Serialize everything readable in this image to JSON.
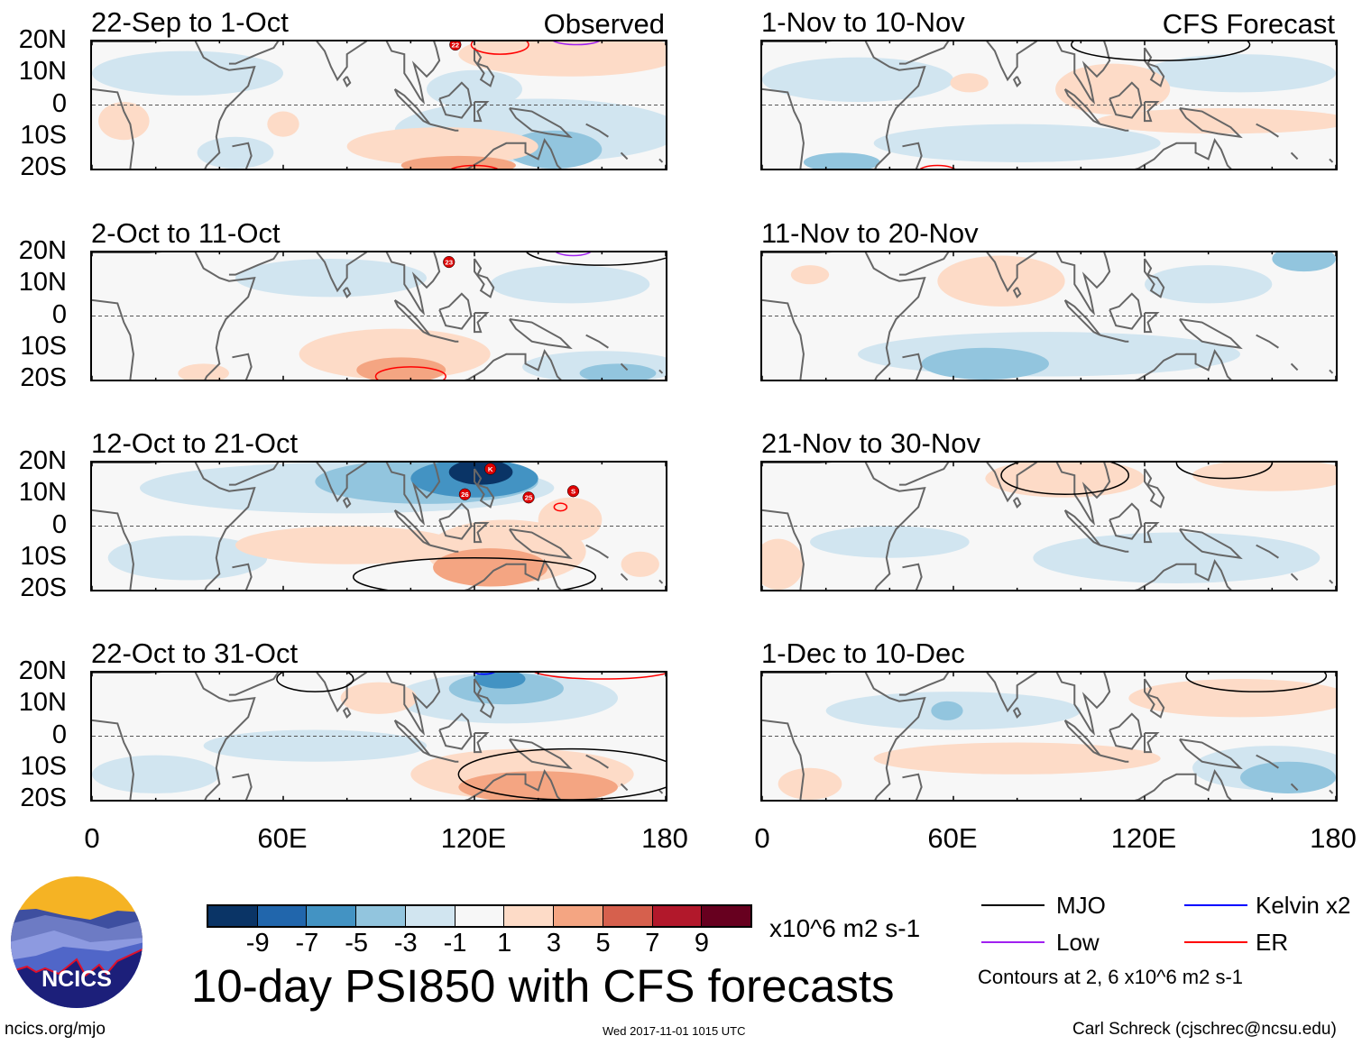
{
  "title": "10-day PSI850 with CFS forecasts",
  "units": "x10^6 m2 s-1",
  "timestamp": "Wed 2017-11-01 1015 UTC",
  "site": "ncics.org/mjo",
  "author": "Carl Schreck (cjschrec@ncsu.edu)",
  "logo_text": "NCICS",
  "lat_labels": [
    "20N",
    "10N",
    "0",
    "10S",
    "20S"
  ],
  "lon_labels": [
    "0",
    "60E",
    "120E",
    "180"
  ],
  "colorbar": {
    "levels": [
      "-9",
      "-7",
      "-5",
      "-3",
      "-1",
      "1",
      "3",
      "5",
      "7",
      "9"
    ],
    "colors": [
      "#0a3466",
      "#2166ac",
      "#4393c3",
      "#92c5de",
      "#d1e5f0",
      "#f7f7f7",
      "#fddbc7",
      "#f4a582",
      "#d6604d",
      "#b2182b",
      "#67001f"
    ]
  },
  "legend": {
    "items": [
      {
        "label": "MJO",
        "color": "#000000"
      },
      {
        "label": "Kelvin x2",
        "color": "#0000ff"
      },
      {
        "label": "Low",
        "color": "#a020f0"
      },
      {
        "label": "ER",
        "color": "#ff0000"
      }
    ],
    "note": "Contours at 2, 6 x10^6 m2 s-1"
  },
  "chart_data": {
    "type": "heatmap",
    "variable": "PSI850 anomaly",
    "lon_range": [
      0,
      180
    ],
    "lat_range": [
      -20,
      20
    ],
    "panels": [
      {
        "title": "22-Sep to 1-Oct",
        "label": "Observed",
        "anomalies": [
          {
            "lon": 30,
            "lat": 10,
            "rx": 30,
            "ry": 7,
            "value": -2
          },
          {
            "lon": 45,
            "lat": -15,
            "rx": 12,
            "ry": 5,
            "value": -2
          },
          {
            "lon": 140,
            "lat": -8,
            "rx": 45,
            "ry": 10,
            "value": -2
          },
          {
            "lon": 120,
            "lat": 5,
            "rx": 15,
            "ry": 6,
            "value": -2
          },
          {
            "lon": 145,
            "lat": -14,
            "rx": 15,
            "ry": 6,
            "value": -4
          },
          {
            "lon": 110,
            "lat": -13,
            "rx": 30,
            "ry": 6,
            "value": 2
          },
          {
            "lon": 115,
            "lat": -19,
            "rx": 18,
            "ry": 3,
            "value": 4
          },
          {
            "lon": 150,
            "lat": 16,
            "rx": 35,
            "ry": 7,
            "value": 2
          },
          {
            "lon": 60,
            "lat": -6,
            "rx": 5,
            "ry": 4,
            "value": 2
          },
          {
            "lon": 10,
            "lat": -5,
            "rx": 8,
            "ry": 6,
            "value": 2
          }
        ],
        "contours": [
          {
            "type": "ER",
            "lon": 128,
            "lat": 19,
            "rx": 9,
            "ry": 3
          },
          {
            "type": "ER",
            "lon": 120,
            "lat": -21,
            "rx": 8,
            "ry": 2
          },
          {
            "type": "Low",
            "lon": 152,
            "lat": 21,
            "rx": 8,
            "ry": 2
          }
        ],
        "storms": [
          {
            "label": "22",
            "lon": 114,
            "lat": 19
          }
        ]
      },
      {
        "title": "2-Oct to 11-Oct",
        "label": "",
        "anomalies": [
          {
            "lon": 75,
            "lat": 12,
            "rx": 30,
            "ry": 6,
            "value": -2
          },
          {
            "lon": 150,
            "lat": 10,
            "rx": 25,
            "ry": 6,
            "value": -2
          },
          {
            "lon": 160,
            "lat": -16,
            "rx": 25,
            "ry": 5,
            "value": -2
          },
          {
            "lon": 95,
            "lat": -12,
            "rx": 30,
            "ry": 8,
            "value": 2
          },
          {
            "lon": 97,
            "lat": -17,
            "rx": 14,
            "ry": 4,
            "value": 4
          },
          {
            "lon": 165,
            "lat": -18,
            "rx": 12,
            "ry": 3,
            "value": -4
          },
          {
            "lon": 35,
            "lat": -18,
            "rx": 8,
            "ry": 3,
            "value": 2
          }
        ],
        "contours": [
          {
            "type": "ER",
            "lon": 100,
            "lat": -19,
            "rx": 11,
            "ry": 3
          },
          {
            "type": "MJO",
            "lon": 160,
            "lat": 21,
            "rx": 24,
            "ry": 5
          },
          {
            "type": "Low",
            "lon": 151,
            "lat": 21,
            "rx": 6,
            "ry": 2
          }
        ],
        "storms": [
          {
            "label": "23",
            "lon": 112,
            "lat": 17
          }
        ]
      },
      {
        "title": "12-Oct to 21-Oct",
        "label": "",
        "anomalies": [
          {
            "lon": 80,
            "lat": 12,
            "rx": 65,
            "ry": 8,
            "value": -2
          },
          {
            "lon": 30,
            "lat": -10,
            "rx": 25,
            "ry": 7,
            "value": -2
          },
          {
            "lon": 105,
            "lat": 14,
            "rx": 35,
            "ry": 7,
            "value": -4
          },
          {
            "lon": 120,
            "lat": 15,
            "rx": 20,
            "ry": 6,
            "value": -6
          },
          {
            "lon": 122,
            "lat": 17,
            "rx": 10,
            "ry": 4,
            "value": -10
          },
          {
            "lon": 80,
            "lat": -6,
            "rx": 35,
            "ry": 6,
            "value": 2
          },
          {
            "lon": 130,
            "lat": -8,
            "rx": 25,
            "ry": 10,
            "value": 2
          },
          {
            "lon": 125,
            "lat": -13,
            "rx": 18,
            "ry": 6,
            "value": 4
          },
          {
            "lon": 150,
            "lat": 2,
            "rx": 10,
            "ry": 7,
            "value": 2
          },
          {
            "lon": 172,
            "lat": -12,
            "rx": 6,
            "ry": 4,
            "value": 2
          }
        ],
        "contours": [
          {
            "type": "MJO",
            "lon": 120,
            "lat": -16,
            "rx": 38,
            "ry": 6
          },
          {
            "type": "ER",
            "lon": 147,
            "lat": 6,
            "rx": 2,
            "ry": 1.2
          }
        ],
        "storms": [
          {
            "label": "26",
            "lon": 117,
            "lat": 10
          },
          {
            "label": "K",
            "lon": 125,
            "lat": 18
          },
          {
            "label": "25",
            "lon": 137,
            "lat": 9
          },
          {
            "label": "S",
            "lon": 151,
            "lat": 11
          }
        ]
      },
      {
        "title": "22-Oct to 31-Oct",
        "label": "",
        "anomalies": [
          {
            "lon": 70,
            "lat": -3,
            "rx": 35,
            "ry": 5,
            "value": -2
          },
          {
            "lon": 20,
            "lat": -12,
            "rx": 20,
            "ry": 6,
            "value": -2
          },
          {
            "lon": 130,
            "lat": 12,
            "rx": 35,
            "ry": 8,
            "value": -2
          },
          {
            "lon": 130,
            "lat": 15,
            "rx": 18,
            "ry": 5,
            "value": -4
          },
          {
            "lon": 128,
            "lat": 18,
            "rx": 8,
            "ry": 3,
            "value": -6
          },
          {
            "lon": 135,
            "lat": -12,
            "rx": 35,
            "ry": 8,
            "value": 2
          },
          {
            "lon": 140,
            "lat": -16,
            "rx": 25,
            "ry": 5,
            "value": 4
          },
          {
            "lon": 90,
            "lat": 12,
            "rx": 12,
            "ry": 5,
            "value": 2
          }
        ],
        "contours": [
          {
            "type": "MJO",
            "lon": 70,
            "lat": 18,
            "rx": 12,
            "ry": 4
          },
          {
            "type": "MJO",
            "lon": 150,
            "lat": -12,
            "rx": 35,
            "ry": 8
          },
          {
            "type": "ER",
            "lon": 160,
            "lat": 21,
            "rx": 22,
            "ry": 3
          },
          {
            "type": "Kelvin",
            "lon": 123,
            "lat": 21,
            "rx": 4,
            "ry": 1.5
          }
        ],
        "storms": []
      },
      {
        "title": "1-Nov to 10-Nov",
        "label": "CFS Forecast",
        "anomalies": [
          {
            "lon": 30,
            "lat": 8,
            "rx": 30,
            "ry": 7,
            "value": -2
          },
          {
            "lon": 150,
            "lat": 10,
            "rx": 30,
            "ry": 6,
            "value": -2
          },
          {
            "lon": 80,
            "lat": -12,
            "rx": 45,
            "ry": 6,
            "value": -2
          },
          {
            "lon": 25,
            "lat": -18,
            "rx": 12,
            "ry": 3,
            "value": -4
          },
          {
            "lon": 110,
            "lat": 5,
            "rx": 18,
            "ry": 8,
            "value": 2
          },
          {
            "lon": 145,
            "lat": -5,
            "rx": 40,
            "ry": 4,
            "value": 2
          },
          {
            "lon": 65,
            "lat": 7,
            "rx": 6,
            "ry": 3,
            "value": 2
          }
        ],
        "contours": [
          {
            "type": "MJO",
            "lon": 125,
            "lat": 19,
            "rx": 28,
            "ry": 5
          },
          {
            "type": "ER",
            "lon": 55,
            "lat": -21,
            "rx": 6,
            "ry": 2
          }
        ],
        "storms": []
      },
      {
        "title": "11-Nov to 20-Nov",
        "label": "",
        "anomalies": [
          {
            "lon": 90,
            "lat": -12,
            "rx": 60,
            "ry": 7,
            "value": -2
          },
          {
            "lon": 70,
            "lat": -15,
            "rx": 20,
            "ry": 5,
            "value": -4
          },
          {
            "lon": 140,
            "lat": 10,
            "rx": 20,
            "ry": 6,
            "value": -2
          },
          {
            "lon": 170,
            "lat": 18,
            "rx": 10,
            "ry": 4,
            "value": -4
          },
          {
            "lon": 75,
            "lat": 11,
            "rx": 20,
            "ry": 8,
            "value": 2
          },
          {
            "lon": 15,
            "lat": 13,
            "rx": 6,
            "ry": 3,
            "value": 2
          }
        ],
        "contours": [],
        "storms": []
      },
      {
        "title": "21-Nov to 30-Nov",
        "label": "",
        "anomalies": [
          {
            "lon": 130,
            "lat": -10,
            "rx": 45,
            "ry": 8,
            "value": -2
          },
          {
            "lon": 40,
            "lat": -5,
            "rx": 25,
            "ry": 5,
            "value": -2
          },
          {
            "lon": 95,
            "lat": 15,
            "rx": 25,
            "ry": 6,
            "value": 2
          },
          {
            "lon": 160,
            "lat": 16,
            "rx": 25,
            "ry": 5,
            "value": 2
          },
          {
            "lon": 5,
            "lat": -12,
            "rx": 8,
            "ry": 8,
            "value": 2
          }
        ],
        "contours": [
          {
            "type": "MJO",
            "lon": 95,
            "lat": 16,
            "rx": 20,
            "ry": 6
          },
          {
            "type": "MJO",
            "lon": 145,
            "lat": 20,
            "rx": 15,
            "ry": 5
          }
        ],
        "storms": []
      },
      {
        "title": "1-Dec to 10-Dec",
        "label": "",
        "anomalies": [
          {
            "lon": 60,
            "lat": 8,
            "rx": 40,
            "ry": 6,
            "value": -2
          },
          {
            "lon": 58,
            "lat": 8,
            "rx": 5,
            "ry": 3,
            "value": -4
          },
          {
            "lon": 160,
            "lat": -10,
            "rx": 25,
            "ry": 7,
            "value": -2
          },
          {
            "lon": 165,
            "lat": -13,
            "rx": 15,
            "ry": 5,
            "value": -4
          },
          {
            "lon": 80,
            "lat": -7,
            "rx": 45,
            "ry": 5,
            "value": 2
          },
          {
            "lon": 150,
            "lat": 12,
            "rx": 35,
            "ry": 6,
            "value": 2
          },
          {
            "lon": 15,
            "lat": -15,
            "rx": 10,
            "ry": 5,
            "value": 2
          }
        ],
        "contours": [
          {
            "type": "MJO",
            "lon": 155,
            "lat": 19,
            "rx": 22,
            "ry": 5
          }
        ],
        "storms": []
      }
    ]
  }
}
